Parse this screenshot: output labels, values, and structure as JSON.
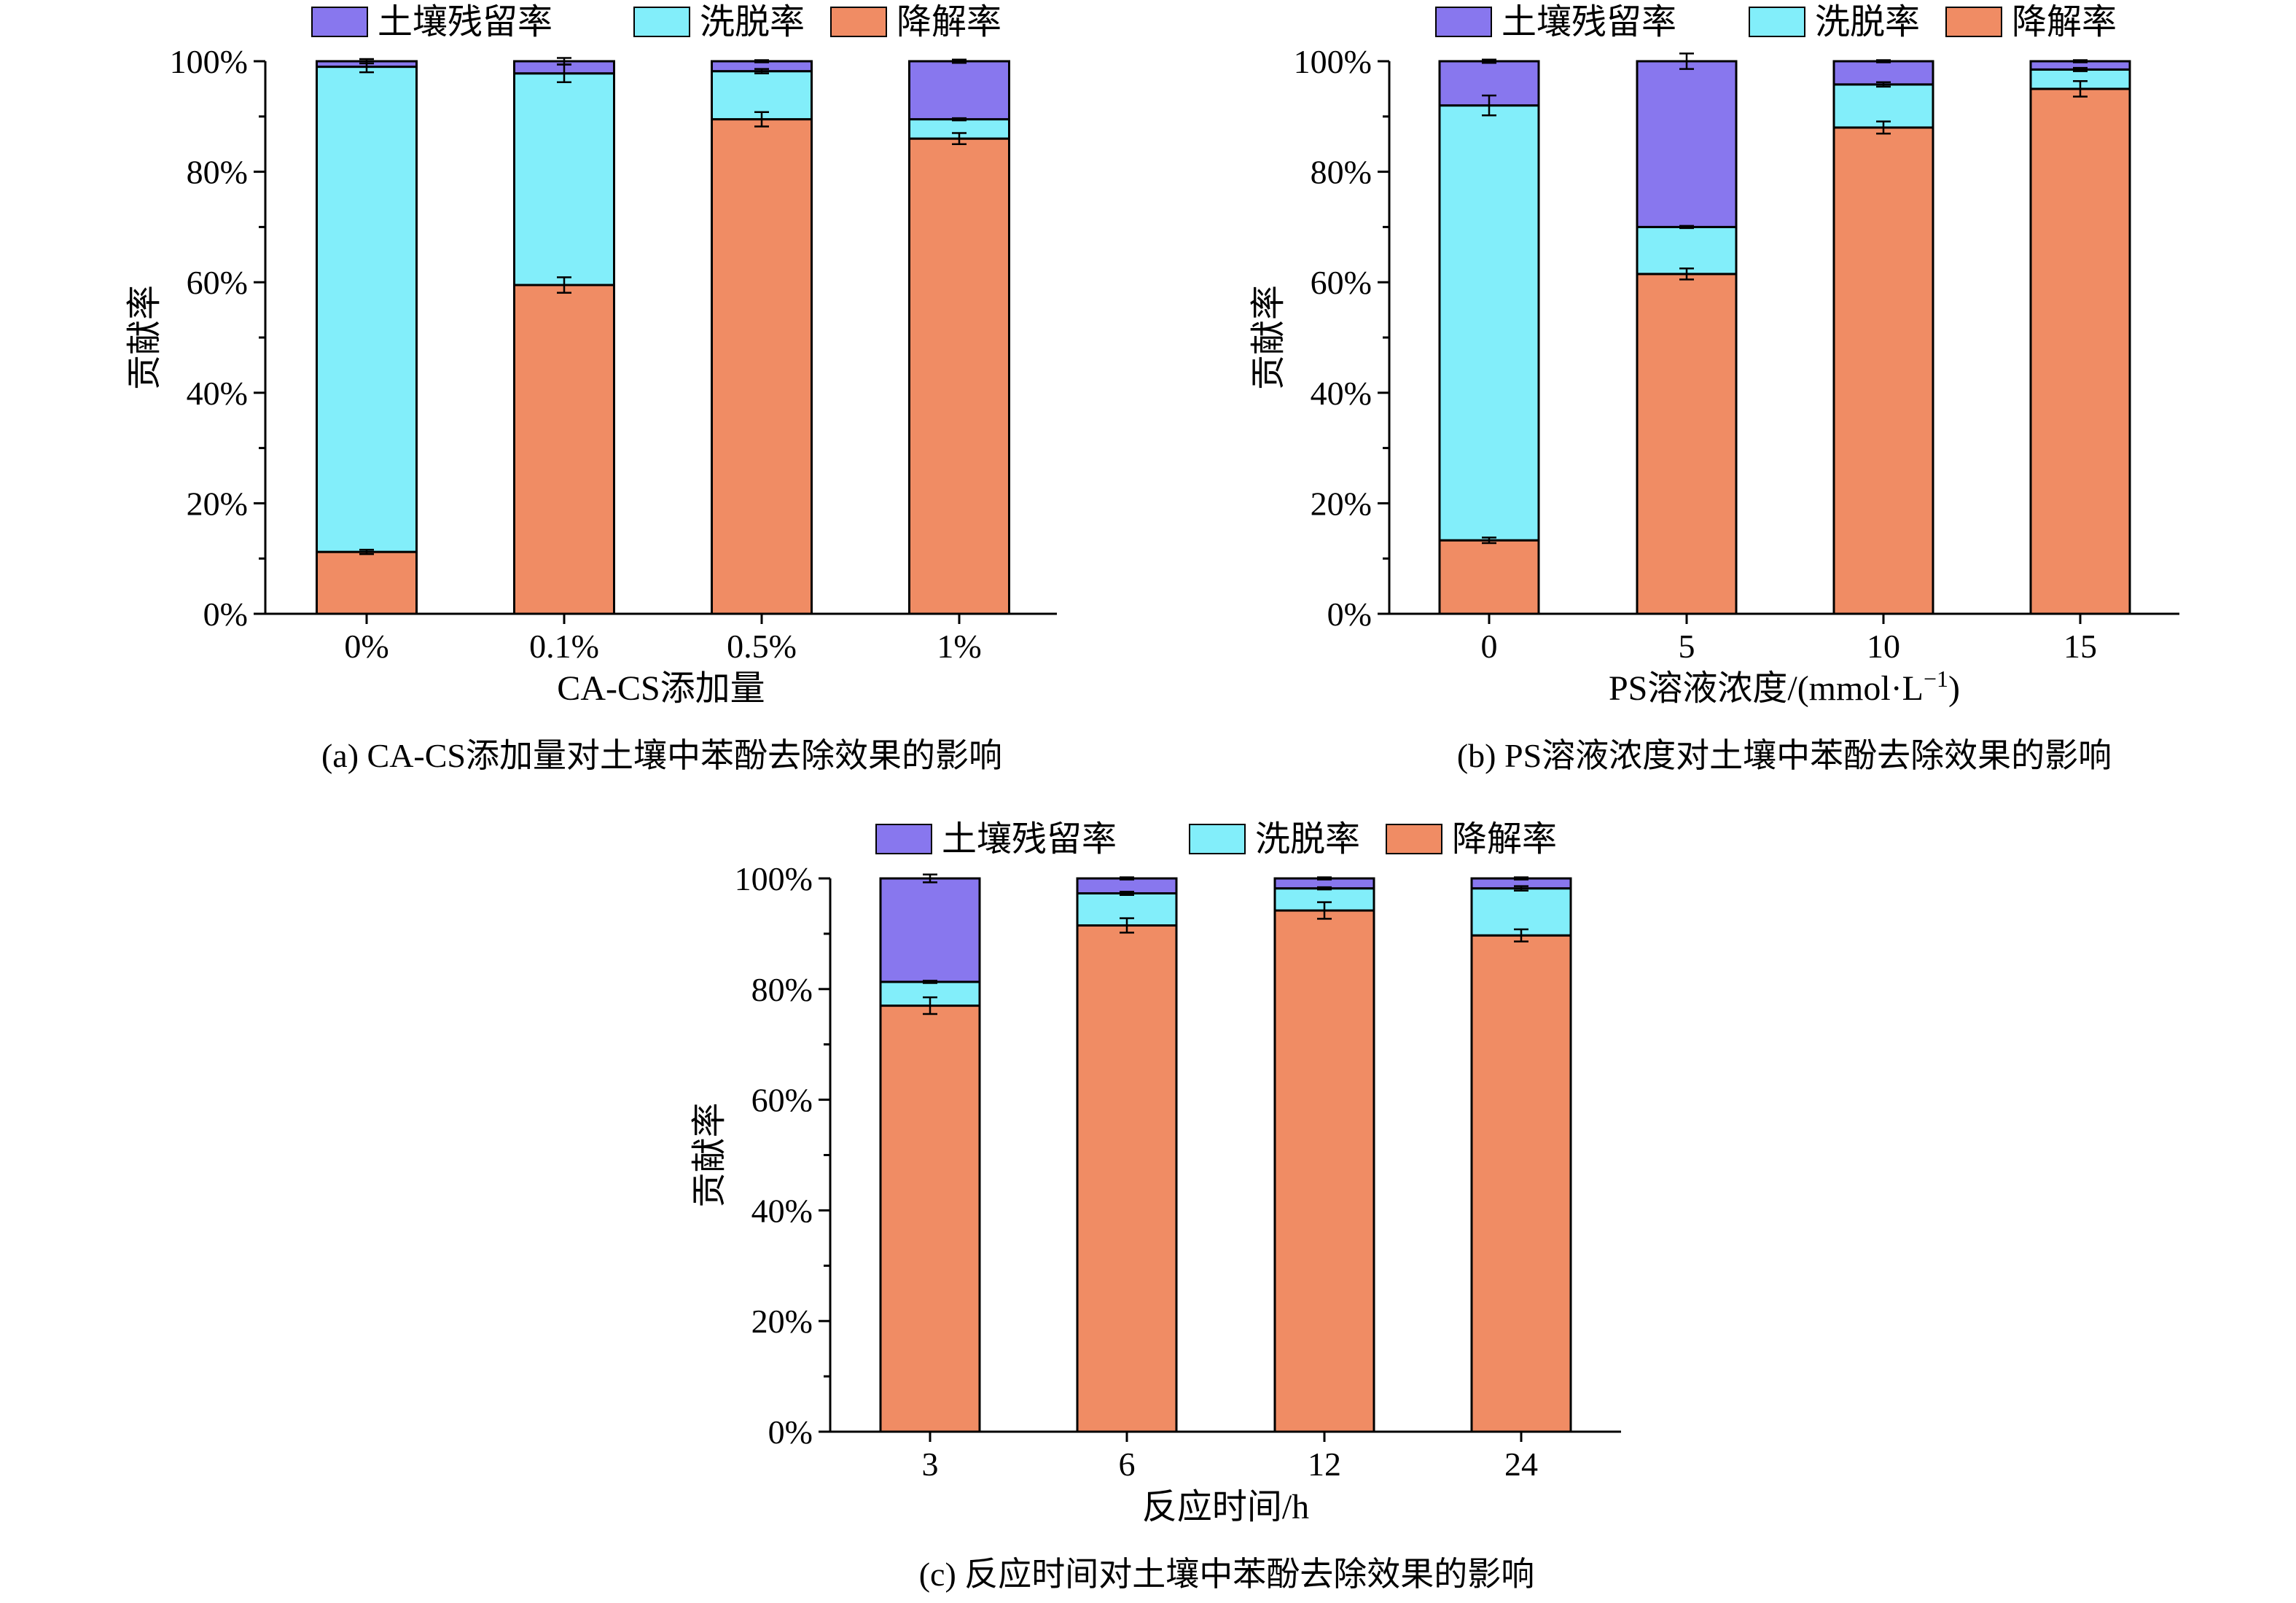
{
  "colors": {
    "residual": "#8877ee",
    "eluted": "#82eefa",
    "degraded": "#f08c64",
    "frame": "#000000"
  },
  "legend_labels": [
    "土壤残留率",
    "洗脱率",
    "降解率"
  ],
  "chart_data": [
    {
      "type": "bar",
      "stacked": true,
      "caption": "(a) CA-CS添加量对土壤中苯酚去除效果的影响",
      "xlabel": "CA-CS添加量",
      "xlabel_sup": "",
      "xlabel_end": "",
      "ylabel": "贡献率",
      "ylim": [
        0,
        100
      ],
      "yticks": [
        "0%",
        "20%",
        "40%",
        "60%",
        "80%",
        "100%"
      ],
      "categories": [
        "0%",
        "0.1%",
        "0.5%",
        "1%"
      ],
      "series": [
        {
          "name": "降解率",
          "values": [
            11.2,
            59.5,
            89.5,
            86.0
          ],
          "errors": [
            0.4,
            1.4,
            1.3,
            1.0
          ]
        },
        {
          "name": "洗脱率",
          "values": [
            87.8,
            38.3,
            8.7,
            3.5
          ],
          "errors": [
            1.0,
            1.6,
            0.4,
            0.2
          ]
        },
        {
          "name": "土壤残留率",
          "values": [
            1.0,
            2.2,
            1.8,
            10.5
          ],
          "errors": [
            0.4,
            0.6,
            0.2,
            0.3
          ]
        }
      ]
    },
    {
      "type": "bar",
      "stacked": true,
      "caption": "(b) PS溶液浓度对土壤中苯酚去除效果的影响",
      "xlabel": "PS溶液浓度/(mmol·L",
      "xlabel_sup": "−1",
      "xlabel_end": ")",
      "ylabel": "贡献率",
      "ylim": [
        0,
        100
      ],
      "yticks": [
        "0%",
        "20%",
        "40%",
        "60%",
        "80%",
        "100%"
      ],
      "categories": [
        "0",
        "5",
        "10",
        "15"
      ],
      "series": [
        {
          "name": "降解率",
          "values": [
            13.3,
            61.5,
            88.0,
            95.0
          ],
          "errors": [
            0.5,
            1.0,
            1.1,
            1.4
          ]
        },
        {
          "name": "洗脱率",
          "values": [
            78.7,
            8.5,
            7.8,
            3.5
          ],
          "errors": [
            1.8,
            0.2,
            0.4,
            0.3
          ]
        },
        {
          "name": "土壤残留率",
          "values": [
            8.0,
            30.0,
            4.2,
            1.5
          ],
          "errors": [
            0.3,
            1.4,
            0.2,
            0.2
          ]
        }
      ]
    },
    {
      "type": "bar",
      "stacked": true,
      "caption": "(c) 反应时间对土壤中苯酚去除效果的影响",
      "xlabel": "反应时间/h",
      "xlabel_sup": "",
      "xlabel_end": "",
      "ylabel": "贡献率",
      "ylim": [
        0,
        100
      ],
      "yticks": [
        "0%",
        "20%",
        "40%",
        "60%",
        "80%",
        "100%"
      ],
      "categories": [
        "3",
        "6",
        "12",
        "24"
      ],
      "series": [
        {
          "name": "降解率",
          "values": [
            77.0,
            91.5,
            94.2,
            89.7
          ],
          "errors": [
            1.5,
            1.3,
            1.5,
            1.1
          ]
        },
        {
          "name": "洗脱率",
          "values": [
            4.3,
            5.8,
            4.0,
            8.5
          ],
          "errors": [
            0.2,
            0.3,
            0.2,
            0.4
          ]
        },
        {
          "name": "土壤残留率",
          "values": [
            18.7,
            2.7,
            1.8,
            1.8
          ],
          "errors": [
            0.7,
            0.2,
            0.2,
            0.2
          ]
        }
      ]
    }
  ]
}
